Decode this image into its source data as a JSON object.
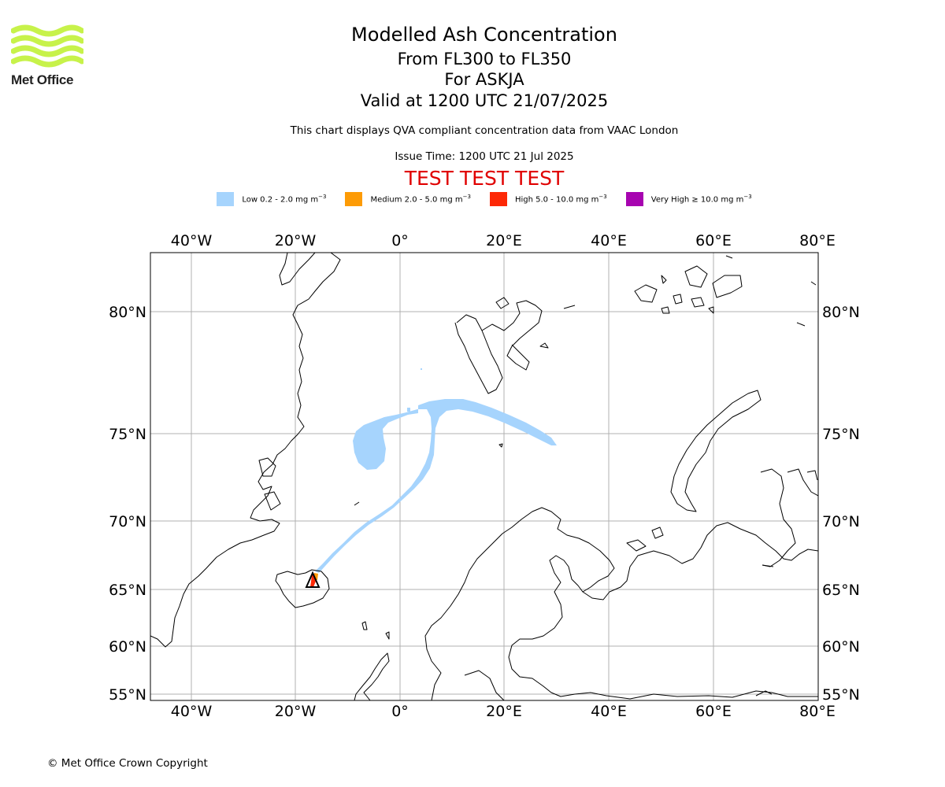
{
  "logo": {
    "name": "Met Office"
  },
  "header": {
    "title": "Modelled Ash Concentration",
    "levels": "From FL300 to FL350",
    "volcano": "For ASKJA",
    "valid": "Valid at 1200 UTC 21/07/2025",
    "subtitle": "This chart displays QVA compliant concentration data from VAAC London",
    "issue_time": "Issue Time: 1200 UTC 21 Jul 2025",
    "test_banner": "TEST TEST TEST"
  },
  "legend": {
    "items": [
      {
        "label": "Low 0.2 - 2.0 mg m",
        "color": "#a6d4fd"
      },
      {
        "label": "Medium 2.0 - 5.0 mg m",
        "color": "#fd9b06"
      },
      {
        "label": "High 5.0 - 10.0 mg m",
        "color": "#fd2806"
      },
      {
        "label": "Very High ≥ 10.0 mg m",
        "color": "#a704b0"
      }
    ],
    "unit_exp": "−3"
  },
  "map": {
    "lon_labels": [
      "40°W",
      "20°W",
      "0°",
      "20°E",
      "40°E",
      "60°E",
      "80°E"
    ],
    "lat_labels": [
      "80°N",
      "75°N",
      "70°N",
      "65°N",
      "60°N",
      "55°N"
    ]
  },
  "footer": {
    "copyright": "© Met Office Crown Copyright"
  }
}
